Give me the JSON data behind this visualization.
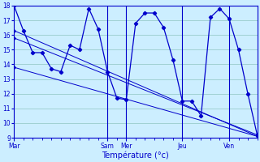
{
  "background_color": "#cceeff",
  "grid_color": "#99cccc",
  "line_color": "#0000cc",
  "xlabel": "Température (°c)",
  "ylim": [
    9,
    18
  ],
  "yticks": [
    9,
    10,
    11,
    12,
    13,
    14,
    15,
    16,
    17,
    18
  ],
  "xlim": [
    0,
    26
  ],
  "day_labels": [
    "Mar",
    "Sam",
    "Mer",
    "Jeu",
    "Ven"
  ],
  "day_positions": [
    0,
    10,
    12,
    18,
    23
  ],
  "vlines_x": [
    10,
    12,
    18,
    23
  ],
  "series": [
    {
      "x": [
        0,
        1,
        2,
        3,
        4,
        5,
        6,
        7,
        8,
        9,
        10,
        11,
        12,
        13,
        14,
        15,
        16,
        17,
        18,
        19,
        20,
        21,
        22,
        23,
        24,
        25,
        26
      ],
      "y": [
        18,
        16.3,
        14.8,
        14.8,
        13.7,
        13.5,
        15.3,
        15.0,
        17.8,
        16.4,
        13.5,
        11.7,
        11.6,
        16.8,
        17.5,
        17.5,
        16.5,
        14.3,
        11.5,
        11.5,
        10.5,
        17.2,
        17.8,
        17.1,
        15.0,
        12.0,
        9.2
      ]
    },
    {
      "x": [
        0,
        26
      ],
      "y": [
        16.3,
        9.1
      ]
    },
    {
      "x": [
        0,
        26
      ],
      "y": [
        15.8,
        9.2
      ]
    },
    {
      "x": [
        0,
        26
      ],
      "y": [
        13.8,
        9.1
      ]
    }
  ],
  "fig_width": 3.2,
  "fig_height": 2.0,
  "dpi": 100
}
